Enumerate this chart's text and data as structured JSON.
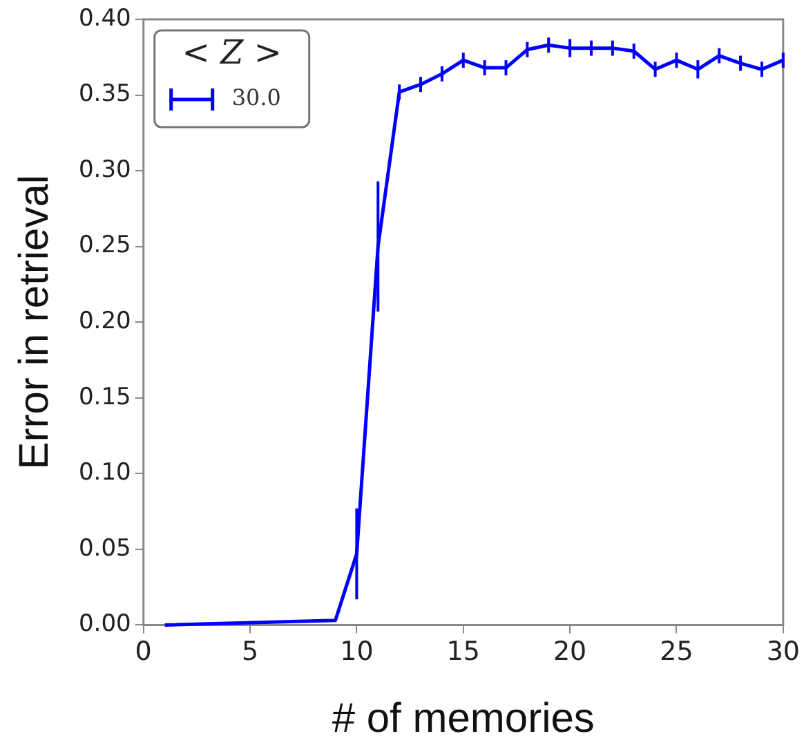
{
  "chart_data": {
    "type": "line",
    "xlabel": "# of memories",
    "ylabel": "Error in retrieval",
    "legend_title": "< Z >",
    "legend": "top left",
    "grid": false,
    "xlim": [
      0,
      30
    ],
    "xticks": [
      0,
      5,
      10,
      15,
      20,
      25,
      30
    ],
    "ylim": [
      0,
      0.4
    ],
    "yticks": [
      {
        "value": 0,
        "label": "0.00"
      },
      {
        "value": 0.05,
        "label": "0.05"
      },
      {
        "value": 0.1,
        "label": "0.10"
      },
      {
        "value": 0.15,
        "label": "0.15"
      },
      {
        "value": 0.2,
        "label": "0.20"
      },
      {
        "value": 0.25,
        "label": "0.25"
      },
      {
        "value": 0.3,
        "label": "0.30"
      },
      {
        "value": 0.35,
        "label": "0.35"
      },
      {
        "value": 0.4,
        "label": "0.40"
      }
    ],
    "x": [
      1,
      9,
      10,
      11,
      12,
      13,
      14,
      15,
      16,
      17,
      18,
      19,
      20,
      21,
      22,
      23,
      24,
      25,
      26,
      27,
      28,
      29,
      30
    ],
    "series": [
      {
        "name": "30.0",
        "color": "#0000ff",
        "values": [
          0,
          0.003,
          0.047,
          0.25,
          0.352,
          0.357,
          0.364,
          0.373,
          0.368,
          0.368,
          0.38,
          0.383,
          0.381,
          0.381,
          0.381,
          0.379,
          0.367,
          0.373,
          0.367,
          0.376,
          0.371,
          0.367,
          0.373
        ],
        "errors": [
          null,
          null,
          0.03,
          0.043,
          0.005,
          0.005,
          0.005,
          0.005,
          0.005,
          0.005,
          0.005,
          0.005,
          0.006,
          0.005,
          0.005,
          0.005,
          0.005,
          0.005,
          0.006,
          0.005,
          0.005,
          0.005,
          0.005
        ]
      }
    ]
  }
}
